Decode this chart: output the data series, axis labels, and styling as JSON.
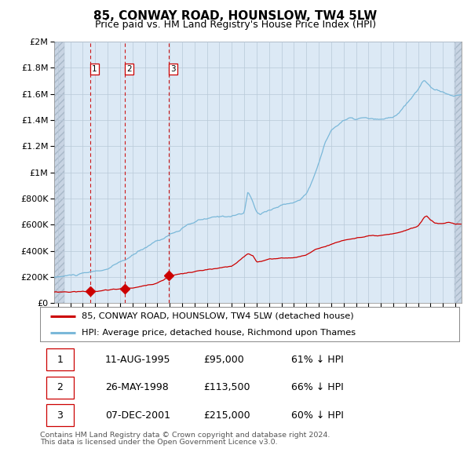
{
  "title": "85, CONWAY ROAD, HOUNSLOW, TW4 5LW",
  "subtitle": "Price paid vs. HM Land Registry's House Price Index (HPI)",
  "legend_line1": "85, CONWAY ROAD, HOUNSLOW, TW4 5LW (detached house)",
  "legend_line2": "HPI: Average price, detached house, Richmond upon Thames",
  "footer1": "Contains HM Land Registry data © Crown copyright and database right 2024.",
  "footer2": "This data is licensed under the Open Government Licence v3.0.",
  "sale_years": [
    1995.614,
    1998.403,
    2001.923
  ],
  "sale_prices": [
    95000,
    113500,
    215000
  ],
  "sale_labels": [
    "1",
    "2",
    "3"
  ],
  "sale_table": [
    [
      "1",
      "11-AUG-1995",
      "£95,000",
      "61% ↓ HPI"
    ],
    [
      "2",
      "26-MAY-1998",
      "£113,500",
      "66% ↓ HPI"
    ],
    [
      "3",
      "07-DEC-2001",
      "£215,000",
      "60% ↓ HPI"
    ]
  ],
  "hpi_color": "#7ab8d9",
  "price_color": "#cc0000",
  "bg_color": "#dce9f5",
  "hatch_bg_color": "#c8d4e3",
  "grid_color": "#b8c8d8",
  "vline_color": "#cc0000",
  "ylim": [
    0,
    2000000
  ],
  "yticks": [
    0,
    200000,
    400000,
    600000,
    800000,
    1000000,
    1200000,
    1400000,
    1600000,
    1800000,
    2000000
  ],
  "xlim_start": 1992.7,
  "xlim_end": 2025.5,
  "hatch_right_start": 2024.92,
  "title_fontsize": 11,
  "subtitle_fontsize": 9,
  "tick_fontsize": 8
}
